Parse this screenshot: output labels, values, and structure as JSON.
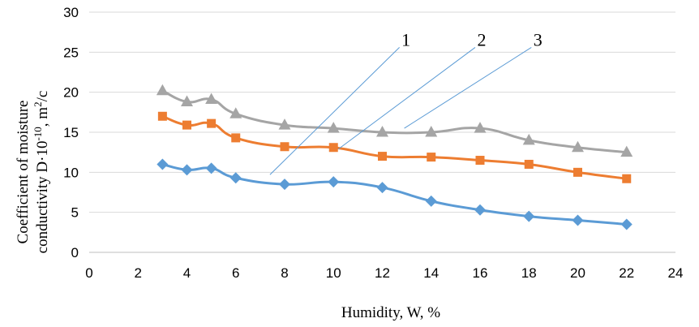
{
  "chart_data": {
    "type": "line",
    "xlabel": "Humidity, W, %",
    "ylabel_line1": "Coefficient of moisture",
    "ylabel_line2_prefix": "conductivity D·10",
    "ylabel_exp": "-10",
    "ylabel_unit": ", m",
    "ylabel_unit_exp": "2",
    "ylabel_unit_suffix": "/c",
    "xlim": [
      0,
      24
    ],
    "ylim": [
      0,
      30
    ],
    "x_ticks": [
      "0",
      "2",
      "4",
      "6",
      "8",
      "10",
      "12",
      "14",
      "16",
      "18",
      "20",
      "22",
      "24"
    ],
    "y_ticks": [
      "0",
      "5",
      "10",
      "15",
      "20",
      "25",
      "30"
    ],
    "grid": "horizontal",
    "series": [
      {
        "callout": "1",
        "color": "#5b9bd5",
        "marker": "diamond",
        "x": [
          3,
          4,
          5,
          6,
          8,
          10,
          12,
          14,
          16,
          18,
          20,
          22
        ],
        "y": [
          11,
          10.3,
          10.5,
          9.3,
          8.5,
          8.8,
          8.1,
          6.4,
          5.3,
          4.5,
          4.0,
          3.5
        ]
      },
      {
        "callout": "2",
        "color": "#ed7d31",
        "marker": "square",
        "x": [
          3,
          4,
          5,
          6,
          8,
          10,
          12,
          14,
          16,
          18,
          20,
          22
        ],
        "y": [
          17,
          15.9,
          16.1,
          14.3,
          13.2,
          13.1,
          12.0,
          11.9,
          11.5,
          11.0,
          10.0,
          9.2
        ]
      },
      {
        "callout": "3",
        "color": "#a5a5a5",
        "marker": "triangle",
        "x": [
          3,
          4,
          5,
          6,
          8,
          10,
          12,
          14,
          16,
          18,
          20,
          22
        ],
        "y": [
          20.2,
          18.8,
          19.1,
          17.3,
          15.9,
          15.5,
          15.0,
          15.0,
          15.5,
          14.0,
          13.1,
          12.5
        ]
      }
    ],
    "callouts": [
      {
        "label": "1",
        "color": "#5b9bd5",
        "from": [
          7.4,
          9.7
        ],
        "to": [
          12.7,
          25.6
        ]
      },
      {
        "label": "2",
        "color": "#5b9bd5",
        "from": [
          10.2,
          12.9
        ],
        "to": [
          15.8,
          25.6
        ]
      },
      {
        "label": "3",
        "color": "#5b9bd5",
        "from": [
          12.9,
          15.5
        ],
        "to": [
          18.1,
          25.6
        ]
      }
    ]
  }
}
